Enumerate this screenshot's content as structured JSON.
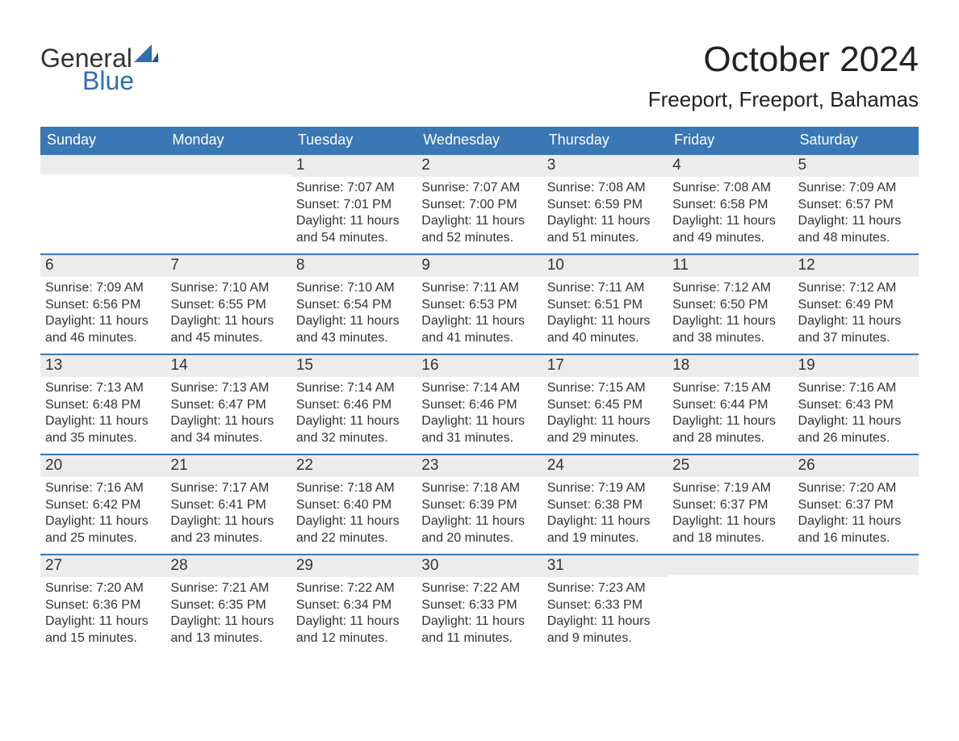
{
  "colors": {
    "header_bg": "#3a77b5",
    "header_text": "#ffffff",
    "band_bg": "#ececec",
    "week_border": "#3a77b5",
    "text": "#333333",
    "logo_blue": "#2f6fb0",
    "page_bg": "#ffffff"
  },
  "typography": {
    "title_fontsize_pt": 33,
    "location_fontsize_pt": 20,
    "dow_fontsize_pt": 14,
    "daynum_fontsize_pt": 14,
    "body_fontsize_pt": 12,
    "font_family": "Arial"
  },
  "logo": {
    "top": "General",
    "bottom": "Blue"
  },
  "title": "October 2024",
  "location": "Freeport, Freeport, Bahamas",
  "days_of_week": [
    "Sunday",
    "Monday",
    "Tuesday",
    "Wednesday",
    "Thursday",
    "Friday",
    "Saturday"
  ],
  "calendar": {
    "type": "table",
    "columns": 7,
    "rows": 5,
    "weeks": [
      [
        {
          "day": "",
          "sunrise": "",
          "sunset": "",
          "daylight1": "",
          "daylight2": ""
        },
        {
          "day": "",
          "sunrise": "",
          "sunset": "",
          "daylight1": "",
          "daylight2": ""
        },
        {
          "day": "1",
          "sunrise": "Sunrise: 7:07 AM",
          "sunset": "Sunset: 7:01 PM",
          "daylight1": "Daylight: 11 hours",
          "daylight2": "and 54 minutes."
        },
        {
          "day": "2",
          "sunrise": "Sunrise: 7:07 AM",
          "sunset": "Sunset: 7:00 PM",
          "daylight1": "Daylight: 11 hours",
          "daylight2": "and 52 minutes."
        },
        {
          "day": "3",
          "sunrise": "Sunrise: 7:08 AM",
          "sunset": "Sunset: 6:59 PM",
          "daylight1": "Daylight: 11 hours",
          "daylight2": "and 51 minutes."
        },
        {
          "day": "4",
          "sunrise": "Sunrise: 7:08 AM",
          "sunset": "Sunset: 6:58 PM",
          "daylight1": "Daylight: 11 hours",
          "daylight2": "and 49 minutes."
        },
        {
          "day": "5",
          "sunrise": "Sunrise: 7:09 AM",
          "sunset": "Sunset: 6:57 PM",
          "daylight1": "Daylight: 11 hours",
          "daylight2": "and 48 minutes."
        }
      ],
      [
        {
          "day": "6",
          "sunrise": "Sunrise: 7:09 AM",
          "sunset": "Sunset: 6:56 PM",
          "daylight1": "Daylight: 11 hours",
          "daylight2": "and 46 minutes."
        },
        {
          "day": "7",
          "sunrise": "Sunrise: 7:10 AM",
          "sunset": "Sunset: 6:55 PM",
          "daylight1": "Daylight: 11 hours",
          "daylight2": "and 45 minutes."
        },
        {
          "day": "8",
          "sunrise": "Sunrise: 7:10 AM",
          "sunset": "Sunset: 6:54 PM",
          "daylight1": "Daylight: 11 hours",
          "daylight2": "and 43 minutes."
        },
        {
          "day": "9",
          "sunrise": "Sunrise: 7:11 AM",
          "sunset": "Sunset: 6:53 PM",
          "daylight1": "Daylight: 11 hours",
          "daylight2": "and 41 minutes."
        },
        {
          "day": "10",
          "sunrise": "Sunrise: 7:11 AM",
          "sunset": "Sunset: 6:51 PM",
          "daylight1": "Daylight: 11 hours",
          "daylight2": "and 40 minutes."
        },
        {
          "day": "11",
          "sunrise": "Sunrise: 7:12 AM",
          "sunset": "Sunset: 6:50 PM",
          "daylight1": "Daylight: 11 hours",
          "daylight2": "and 38 minutes."
        },
        {
          "day": "12",
          "sunrise": "Sunrise: 7:12 AM",
          "sunset": "Sunset: 6:49 PM",
          "daylight1": "Daylight: 11 hours",
          "daylight2": "and 37 minutes."
        }
      ],
      [
        {
          "day": "13",
          "sunrise": "Sunrise: 7:13 AM",
          "sunset": "Sunset: 6:48 PM",
          "daylight1": "Daylight: 11 hours",
          "daylight2": "and 35 minutes."
        },
        {
          "day": "14",
          "sunrise": "Sunrise: 7:13 AM",
          "sunset": "Sunset: 6:47 PM",
          "daylight1": "Daylight: 11 hours",
          "daylight2": "and 34 minutes."
        },
        {
          "day": "15",
          "sunrise": "Sunrise: 7:14 AM",
          "sunset": "Sunset: 6:46 PM",
          "daylight1": "Daylight: 11 hours",
          "daylight2": "and 32 minutes."
        },
        {
          "day": "16",
          "sunrise": "Sunrise: 7:14 AM",
          "sunset": "Sunset: 6:46 PM",
          "daylight1": "Daylight: 11 hours",
          "daylight2": "and 31 minutes."
        },
        {
          "day": "17",
          "sunrise": "Sunrise: 7:15 AM",
          "sunset": "Sunset: 6:45 PM",
          "daylight1": "Daylight: 11 hours",
          "daylight2": "and 29 minutes."
        },
        {
          "day": "18",
          "sunrise": "Sunrise: 7:15 AM",
          "sunset": "Sunset: 6:44 PM",
          "daylight1": "Daylight: 11 hours",
          "daylight2": "and 28 minutes."
        },
        {
          "day": "19",
          "sunrise": "Sunrise: 7:16 AM",
          "sunset": "Sunset: 6:43 PM",
          "daylight1": "Daylight: 11 hours",
          "daylight2": "and 26 minutes."
        }
      ],
      [
        {
          "day": "20",
          "sunrise": "Sunrise: 7:16 AM",
          "sunset": "Sunset: 6:42 PM",
          "daylight1": "Daylight: 11 hours",
          "daylight2": "and 25 minutes."
        },
        {
          "day": "21",
          "sunrise": "Sunrise: 7:17 AM",
          "sunset": "Sunset: 6:41 PM",
          "daylight1": "Daylight: 11 hours",
          "daylight2": "and 23 minutes."
        },
        {
          "day": "22",
          "sunrise": "Sunrise: 7:18 AM",
          "sunset": "Sunset: 6:40 PM",
          "daylight1": "Daylight: 11 hours",
          "daylight2": "and 22 minutes."
        },
        {
          "day": "23",
          "sunrise": "Sunrise: 7:18 AM",
          "sunset": "Sunset: 6:39 PM",
          "daylight1": "Daylight: 11 hours",
          "daylight2": "and 20 minutes."
        },
        {
          "day": "24",
          "sunrise": "Sunrise: 7:19 AM",
          "sunset": "Sunset: 6:38 PM",
          "daylight1": "Daylight: 11 hours",
          "daylight2": "and 19 minutes."
        },
        {
          "day": "25",
          "sunrise": "Sunrise: 7:19 AM",
          "sunset": "Sunset: 6:37 PM",
          "daylight1": "Daylight: 11 hours",
          "daylight2": "and 18 minutes."
        },
        {
          "day": "26",
          "sunrise": "Sunrise: 7:20 AM",
          "sunset": "Sunset: 6:37 PM",
          "daylight1": "Daylight: 11 hours",
          "daylight2": "and 16 minutes."
        }
      ],
      [
        {
          "day": "27",
          "sunrise": "Sunrise: 7:20 AM",
          "sunset": "Sunset: 6:36 PM",
          "daylight1": "Daylight: 11 hours",
          "daylight2": "and 15 minutes."
        },
        {
          "day": "28",
          "sunrise": "Sunrise: 7:21 AM",
          "sunset": "Sunset: 6:35 PM",
          "daylight1": "Daylight: 11 hours",
          "daylight2": "and 13 minutes."
        },
        {
          "day": "29",
          "sunrise": "Sunrise: 7:22 AM",
          "sunset": "Sunset: 6:34 PM",
          "daylight1": "Daylight: 11 hours",
          "daylight2": "and 12 minutes."
        },
        {
          "day": "30",
          "sunrise": "Sunrise: 7:22 AM",
          "sunset": "Sunset: 6:33 PM",
          "daylight1": "Daylight: 11 hours",
          "daylight2": "and 11 minutes."
        },
        {
          "day": "31",
          "sunrise": "Sunrise: 7:23 AM",
          "sunset": "Sunset: 6:33 PM",
          "daylight1": "Daylight: 11 hours",
          "daylight2": "and 9 minutes."
        },
        {
          "day": "",
          "sunrise": "",
          "sunset": "",
          "daylight1": "",
          "daylight2": ""
        },
        {
          "day": "",
          "sunrise": "",
          "sunset": "",
          "daylight1": "",
          "daylight2": ""
        }
      ]
    ]
  }
}
